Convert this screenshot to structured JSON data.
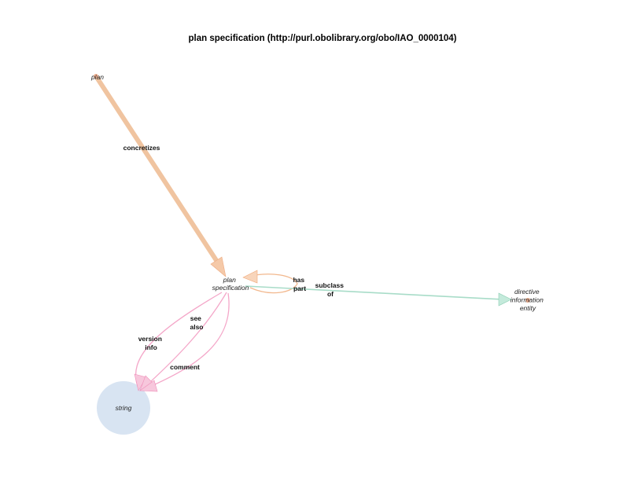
{
  "title": "plan specification (http://purl.obolibrary.org/obo/IAO_0000104)",
  "nodes": {
    "plan": {
      "lines": [
        "plan"
      ]
    },
    "plan_specification": {
      "lines": [
        "plan",
        "specification"
      ]
    },
    "directive_information_entity": {
      "lines": [
        "directive",
        "information",
        "entity"
      ]
    },
    "string": {
      "lines": [
        "string"
      ]
    }
  },
  "edges": {
    "concretizes": {
      "lines": [
        "concretizes"
      ]
    },
    "has_part": {
      "lines": [
        "has",
        "part"
      ]
    },
    "subclass_of": {
      "lines": [
        "subclass",
        "of"
      ]
    },
    "see_also": {
      "lines": [
        "see",
        "also"
      ]
    },
    "version_info": {
      "lines": [
        "version",
        "info"
      ]
    },
    "comment": {
      "lines": [
        "comment"
      ]
    }
  },
  "colors": {
    "concretizes_edge": "#f0c4a0",
    "has_part_edge": "#f2b88e",
    "subclass_edge": "#a8dcc8",
    "annotation_edge": "#f4a6c8",
    "string_node": "#d8e4f2",
    "plan_dot": "#f5b596",
    "directive_dot": "#f5b596"
  }
}
